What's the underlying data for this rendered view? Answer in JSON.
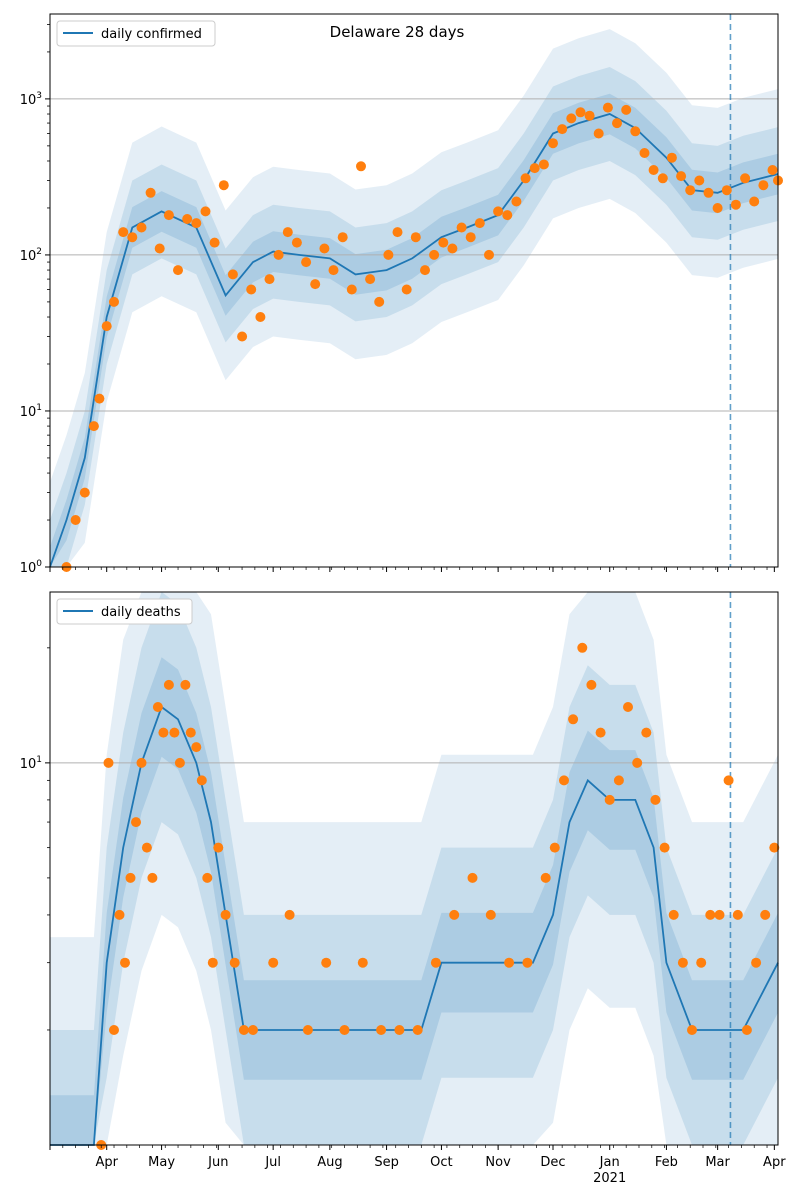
{
  "figure": {
    "title": "Delaware 28 days"
  },
  "colors": {
    "line": "#1f77b4",
    "dots": "#ff7f0e",
    "band": "#1f77b4",
    "grid": "#b0b0b0",
    "vline": "#1f77b4"
  },
  "x_axis": {
    "month_ticks": [
      "Apr",
      "May",
      "Jun",
      "Jul",
      "Aug",
      "Sep",
      "Oct",
      "Nov",
      "Dec",
      "Jan",
      "Feb",
      "Mar",
      "Apr"
    ],
    "year_label": "2021"
  },
  "chart_data": [
    {
      "type": "line",
      "legend": [
        "daily confirmed"
      ],
      "legend_position": "top-left",
      "yscale": "log",
      "ylim": [
        1,
        3500
      ],
      "yticks": [
        1,
        10,
        100,
        1000
      ],
      "ytick_labels": [
        "10^0",
        "10^1",
        "10^2",
        "10^3"
      ],
      "grid": "y-major",
      "x_range": [
        "2020-03-01",
        "2021-04-03"
      ],
      "vline_date": "2021-03-08",
      "series_dates": [
        "2020-03-01",
        "2020-03-10",
        "2020-03-20",
        "2020-04-01",
        "2020-04-15",
        "2020-05-01",
        "2020-05-20",
        "2020-06-05",
        "2020-06-20",
        "2020-07-01",
        "2020-07-15",
        "2020-08-01",
        "2020-08-15",
        "2020-09-01",
        "2020-09-15",
        "2020-10-01",
        "2020-10-15",
        "2020-11-01",
        "2020-11-15",
        "2020-12-01",
        "2020-12-15",
        "2021-01-01",
        "2021-01-15",
        "2021-02-01",
        "2021-02-15",
        "2021-03-01",
        "2021-03-15",
        "2021-04-03"
      ],
      "series_values": [
        1,
        2,
        5,
        40,
        150,
        190,
        150,
        55,
        90,
        105,
        100,
        95,
        75,
        80,
        95,
        130,
        150,
        180,
        300,
        600,
        700,
        800,
        650,
        420,
        260,
        250,
        290,
        330
      ],
      "scatter_dates": [
        "2020-03-10",
        "2020-03-15",
        "2020-03-20",
        "2020-03-25",
        "2020-03-28",
        "2020-04-01",
        "2020-04-05",
        "2020-04-10",
        "2020-04-15",
        "2020-04-20",
        "2020-04-25",
        "2020-04-30",
        "2020-05-05",
        "2020-05-10",
        "2020-05-15",
        "2020-05-20",
        "2020-05-25",
        "2020-05-30",
        "2020-06-04",
        "2020-06-09",
        "2020-06-14",
        "2020-06-19",
        "2020-06-24",
        "2020-06-29",
        "2020-07-04",
        "2020-07-09",
        "2020-07-14",
        "2020-07-19",
        "2020-07-24",
        "2020-07-29",
        "2020-08-03",
        "2020-08-08",
        "2020-08-13",
        "2020-08-18",
        "2020-08-23",
        "2020-08-28",
        "2020-09-02",
        "2020-09-07",
        "2020-09-12",
        "2020-09-17",
        "2020-09-22",
        "2020-09-27",
        "2020-10-02",
        "2020-10-07",
        "2020-10-12",
        "2020-10-17",
        "2020-10-22",
        "2020-10-27",
        "2020-11-01",
        "2020-11-06",
        "2020-11-11",
        "2020-11-16",
        "2020-11-21",
        "2020-11-26",
        "2020-12-01",
        "2020-12-06",
        "2020-12-11",
        "2020-12-16",
        "2020-12-21",
        "2020-12-26",
        "2020-12-31",
        "2021-01-05",
        "2021-01-10",
        "2021-01-15",
        "2021-01-20",
        "2021-01-25",
        "2021-01-30",
        "2021-02-04",
        "2021-02-09",
        "2021-02-14",
        "2021-02-19",
        "2021-02-24",
        "2021-03-01",
        "2021-03-06",
        "2021-03-11",
        "2021-03-16",
        "2021-03-21",
        "2021-03-26",
        "2021-03-31",
        "2021-04-03"
      ],
      "scatter_values": [
        1,
        2,
        3,
        8,
        12,
        35,
        50,
        140,
        130,
        150,
        250,
        110,
        180,
        80,
        170,
        160,
        190,
        120,
        280,
        75,
        30,
        60,
        40,
        70,
        100,
        140,
        120,
        90,
        65,
        110,
        80,
        130,
        60,
        370,
        70,
        50,
        100,
        140,
        60,
        130,
        80,
        100,
        120,
        110,
        150,
        130,
        160,
        100,
        190,
        180,
        220,
        310,
        360,
        380,
        520,
        640,
        750,
        820,
        780,
        600,
        880,
        700,
        850,
        620,
        450,
        350,
        310,
        420,
        320,
        260,
        300,
        250,
        200,
        260,
        210,
        310,
        220,
        280,
        350,
        300
      ]
    },
    {
      "type": "line",
      "legend": [
        "daily deaths"
      ],
      "legend_position": "top-left",
      "yscale": "log",
      "ylim": [
        1,
        28
      ],
      "yticks": [
        10
      ],
      "ytick_labels": [
        "10^1"
      ],
      "grid": "y-major",
      "x_range": [
        "2020-03-01",
        "2021-04-03"
      ],
      "vline_date": "2021-03-08",
      "series_dates": [
        "2020-03-01",
        "2020-03-25",
        "2020-04-01",
        "2020-04-10",
        "2020-04-20",
        "2020-05-01",
        "2020-05-10",
        "2020-05-20",
        "2020-05-28",
        "2020-06-05",
        "2020-06-15",
        "2020-07-01",
        "2020-07-20",
        "2020-08-01",
        "2020-08-20",
        "2020-09-01",
        "2020-09-20",
        "2020-10-01",
        "2020-10-20",
        "2020-11-01",
        "2020-11-20",
        "2020-12-01",
        "2020-12-10",
        "2020-12-20",
        "2021-01-01",
        "2021-01-15",
        "2021-01-25",
        "2021-02-01",
        "2021-02-15",
        "2021-03-01",
        "2021-03-15",
        "2021-04-03"
      ],
      "series_values": [
        1,
        1,
        3,
        6,
        10,
        14,
        13,
        10,
        7,
        4,
        2,
        2,
        2,
        2,
        2,
        2,
        2,
        3,
        3,
        3,
        3,
        4,
        7,
        9,
        8,
        8,
        6,
        3,
        2,
        2,
        2,
        3
      ],
      "scatter_dates": [
        "2020-03-29",
        "2020-04-02",
        "2020-04-05",
        "2020-04-08",
        "2020-04-11",
        "2020-04-14",
        "2020-04-17",
        "2020-04-20",
        "2020-04-23",
        "2020-04-26",
        "2020-04-29",
        "2020-05-02",
        "2020-05-05",
        "2020-05-08",
        "2020-05-11",
        "2020-05-14",
        "2020-05-17",
        "2020-05-20",
        "2020-05-23",
        "2020-05-26",
        "2020-05-29",
        "2020-06-01",
        "2020-06-05",
        "2020-06-10",
        "2020-06-15",
        "2020-06-20",
        "2020-07-01",
        "2020-07-10",
        "2020-07-20",
        "2020-07-30",
        "2020-08-09",
        "2020-08-19",
        "2020-08-29",
        "2020-09-08",
        "2020-09-18",
        "2020-09-28",
        "2020-10-08",
        "2020-10-18",
        "2020-10-28",
        "2020-11-07",
        "2020-11-17",
        "2020-11-27",
        "2020-12-02",
        "2020-12-07",
        "2020-12-12",
        "2020-12-17",
        "2020-12-22",
        "2020-12-27",
        "2021-01-01",
        "2021-01-06",
        "2021-01-11",
        "2021-01-16",
        "2021-01-21",
        "2021-01-26",
        "2021-01-31",
        "2021-02-05",
        "2021-02-10",
        "2021-02-15",
        "2021-02-20",
        "2021-02-25",
        "2021-03-02",
        "2021-03-07",
        "2021-03-12",
        "2021-03-17",
        "2021-03-22",
        "2021-03-27",
        "2021-04-01"
      ],
      "scatter_values": [
        1,
        10,
        2,
        4,
        3,
        5,
        7,
        10,
        6,
        5,
        14,
        12,
        16,
        12,
        10,
        16,
        12,
        11,
        9,
        5,
        3,
        6,
        4,
        3,
        2,
        2,
        3,
        4,
        2,
        3,
        2,
        3,
        2,
        2,
        2,
        3,
        4,
        5,
        4,
        3,
        3,
        5,
        6,
        9,
        13,
        20,
        16,
        12,
        8,
        9,
        14,
        10,
        12,
        8,
        6,
        4,
        3,
        2,
        3,
        4,
        4,
        9,
        4,
        2,
        3,
        4,
        6
      ]
    }
  ]
}
